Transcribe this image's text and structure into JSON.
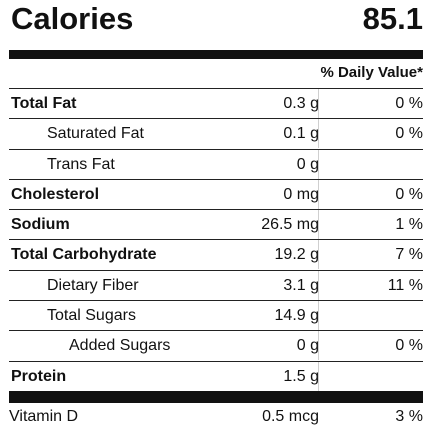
{
  "calories": {
    "label": "Calories",
    "value": "85.1"
  },
  "daily_value_header": "% Daily Value*",
  "nutrients": [
    {
      "name": "Total Fat",
      "amount": "0.3 g",
      "dv": "0 %",
      "bold": true,
      "indent": 0
    },
    {
      "name": "Saturated Fat",
      "amount": "0.1 g",
      "dv": "0 %",
      "bold": false,
      "indent": 1
    },
    {
      "name": "Trans Fat",
      "amount": "0 g",
      "dv": "",
      "bold": false,
      "indent": 1
    },
    {
      "name": "Cholesterol",
      "amount": "0 mg",
      "dv": "0 %",
      "bold": true,
      "indent": 0
    },
    {
      "name": "Sodium",
      "amount": "26.5 mg",
      "dv": "1 %",
      "bold": true,
      "indent": 0
    },
    {
      "name": "Total Carbohydrate",
      "amount": "19.2 g",
      "dv": "7 %",
      "bold": true,
      "indent": 0
    },
    {
      "name": "Dietary Fiber",
      "amount": "3.1 g",
      "dv": "11 %",
      "bold": false,
      "indent": 1
    },
    {
      "name": "Total Sugars",
      "amount": "14.9 g",
      "dv": "",
      "bold": false,
      "indent": 1
    },
    {
      "name": "Added Sugars",
      "amount": "0 g",
      "dv": "0 %",
      "bold": false,
      "indent": 2
    },
    {
      "name": "Protein",
      "amount": "1.5 g",
      "dv": "",
      "bold": true,
      "indent": 0
    }
  ],
  "vitamins": [
    {
      "name": "Vitamin D",
      "amount": "0.5 mcg",
      "dv": "3 %"
    }
  ]
}
